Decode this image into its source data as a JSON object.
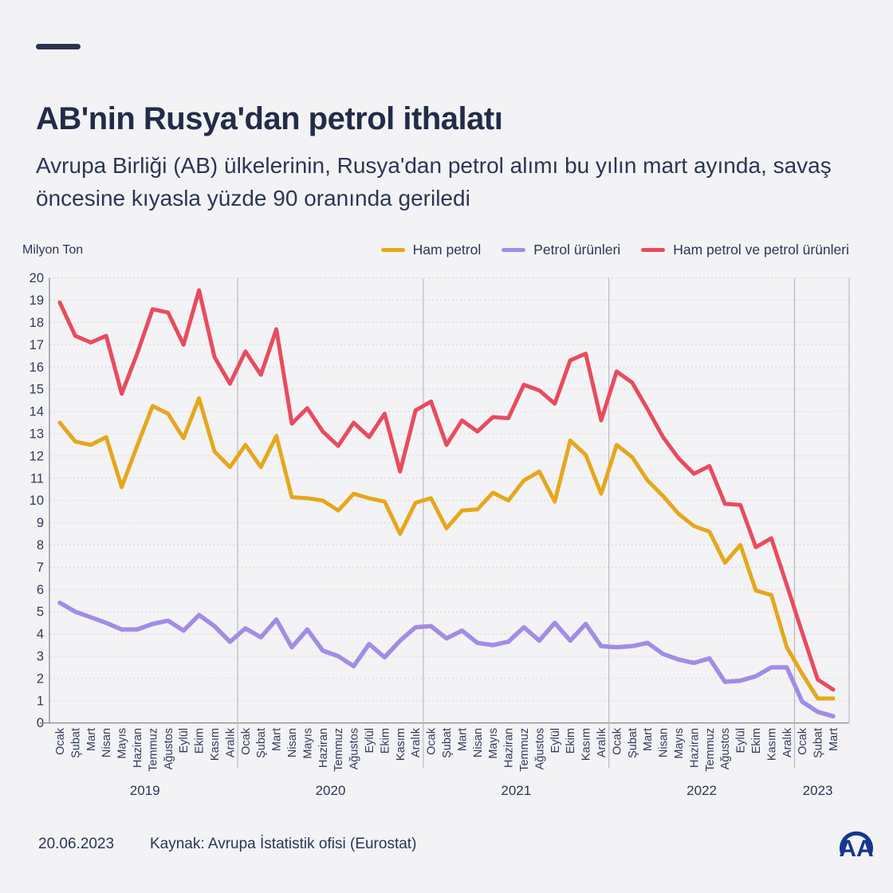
{
  "header": {
    "title": "AB'nin Rusya'dan petrol ithalatı",
    "subtitle": "Avrupa Birliği (AB) ülkelerinin, Rusya'dan petrol alımı bu yılın mart ayında, savaş öncesine kıyasla yüzde 90 oranında geriledi"
  },
  "chart": {
    "y_axis_unit": "Milyon Ton"
  },
  "chart_data": {
    "type": "line",
    "title": "AB'nin Rusya'dan petrol ithalatı",
    "ylabel": "Milyon Ton",
    "ylim": [
      0,
      20
    ],
    "ytick_step": 1,
    "grid": true,
    "legend_position": "top-right",
    "x_labels": [
      "Ocak",
      "Şubat",
      "Mart",
      "Nisan",
      "Mayıs",
      "Haziran",
      "Temmuz",
      "Ağustos",
      "Eylül",
      "Ekim",
      "Kasım",
      "Aralık",
      "Ocak",
      "Şubat",
      "Mart",
      "Nisan",
      "Mayıs",
      "Haziran",
      "Temmuz",
      "Ağustos",
      "Eylül",
      "Ekim",
      "Kasım",
      "Aralık",
      "Ocak",
      "Şubat",
      "Mart",
      "Nisan",
      "Mayıs",
      "Haziran",
      "Temmuz",
      "Ağustos",
      "Eylül",
      "Ekim",
      "Kasım",
      "Aralık",
      "Ocak",
      "Şubat",
      "Mart",
      "Nisan",
      "Mayıs",
      "Haziran",
      "Temmuz",
      "Ağustos",
      "Eylül",
      "Ekim",
      "Kasım",
      "Aralık",
      "Ocak",
      "Şubat",
      "Mart"
    ],
    "year_groups": [
      {
        "label": "2019",
        "count": 12
      },
      {
        "label": "2020",
        "count": 12
      },
      {
        "label": "2021",
        "count": 12
      },
      {
        "label": "2022",
        "count": 12
      },
      {
        "label": "2023",
        "count": 3
      }
    ],
    "series": [
      {
        "name": "Ham petrol",
        "color": "#e6a71d",
        "values": [
          13.5,
          12.65,
          12.5,
          12.85,
          10.6,
          12.45,
          14.25,
          13.9,
          12.8,
          14.6,
          12.2,
          11.5,
          12.5,
          11.5,
          12.9,
          10.15,
          10.1,
          10.0,
          9.55,
          10.3,
          10.1,
          9.95,
          8.5,
          9.9,
          10.1,
          8.75,
          9.55,
          9.6,
          10.35,
          10.0,
          10.9,
          11.3,
          9.95,
          12.7,
          12.05,
          10.3,
          12.5,
          11.95,
          10.9,
          10.2,
          9.4,
          8.85,
          8.6,
          7.2,
          8.0,
          5.95,
          5.75,
          3.4,
          2.2,
          1.1,
          1.1
        ]
      },
      {
        "name": "Petrol ürünleri",
        "color": "#a28ce6",
        "values": [
          5.4,
          5.0,
          4.75,
          4.5,
          4.2,
          4.2,
          4.45,
          4.6,
          4.15,
          4.85,
          4.35,
          3.65,
          4.25,
          3.85,
          4.65,
          3.4,
          4.2,
          3.25,
          3.0,
          2.55,
          3.55,
          2.95,
          3.7,
          4.3,
          4.35,
          3.8,
          4.15,
          3.6,
          3.5,
          3.65,
          4.3,
          3.7,
          4.5,
          3.7,
          4.45,
          3.45,
          3.4,
          3.45,
          3.6,
          3.1,
          2.85,
          2.7,
          2.9,
          1.85,
          1.9,
          2.1,
          2.5,
          2.5,
          0.95,
          0.5,
          0.3
        ]
      },
      {
        "name": "Ham petrol ve petrol ürünleri",
        "color": "#e94b5e",
        "values": [
          18.9,
          17.4,
          17.1,
          17.4,
          14.8,
          16.6,
          18.6,
          18.45,
          17.0,
          19.45,
          16.45,
          15.25,
          16.7,
          15.65,
          17.7,
          13.45,
          14.15,
          13.1,
          12.45,
          13.5,
          12.85,
          13.9,
          11.3,
          14.05,
          14.45,
          12.5,
          13.6,
          13.1,
          13.75,
          13.7,
          15.2,
          14.95,
          14.35,
          16.3,
          16.6,
          13.6,
          15.8,
          15.3,
          14.1,
          12.85,
          11.9,
          11.2,
          11.55,
          9.85,
          9.8,
          7.9,
          8.3,
          6.2,
          4.05,
          1.95,
          1.5
        ]
      }
    ]
  },
  "colors": {
    "background": "#f3f3f5",
    "text": "#2b3654",
    "grid": "#d4d4da",
    "axis": "#8f8f9b",
    "year_separator": "#b9b9c2",
    "logo_blue": "#16368c"
  },
  "footer": {
    "date": "20.06.2023",
    "source": "Kaynak: Avrupa İstatistik ofisi (Eurostat)",
    "logo_text": "AA"
  }
}
